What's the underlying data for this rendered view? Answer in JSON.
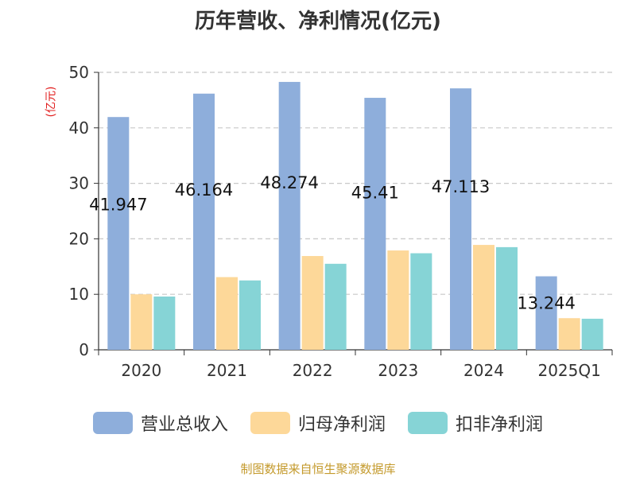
{
  "chart_data": {
    "type": "bar",
    "title": "历年营收、净利情况(亿元)",
    "ylabel": "(亿元)",
    "ylim": [
      0,
      50
    ],
    "yticks": [
      0,
      10,
      20,
      30,
      40,
      50
    ],
    "grid": true,
    "legend_position": "bottom",
    "categories": [
      "2020",
      "2021",
      "2022",
      "2023",
      "2024",
      "2025Q1"
    ],
    "series": [
      {
        "name": "营业总收入",
        "color": "#8eaedb",
        "values": [
          41.947,
          46.164,
          48.274,
          45.41,
          47.113,
          13.244
        ],
        "labels": [
          "41.947",
          "46.164",
          "48.274",
          "45.41",
          "47.113",
          "13.244"
        ]
      },
      {
        "name": "归母净利润",
        "color": "#fdd899",
        "values": [
          10.0,
          13.1,
          16.9,
          17.9,
          18.9,
          5.7
        ]
      },
      {
        "name": "扣非净利润",
        "color": "#86d4d6",
        "values": [
          9.6,
          12.5,
          15.5,
          17.4,
          18.5,
          5.6
        ]
      }
    ]
  },
  "source": "制图数据来自恒生聚源数据库"
}
